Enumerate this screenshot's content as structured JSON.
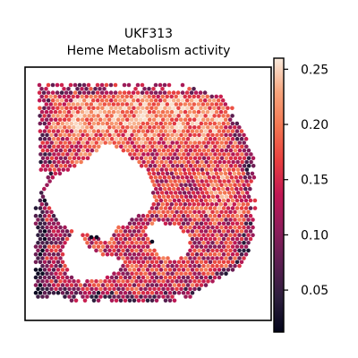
{
  "chart_data": {
    "type": "heatmap",
    "title": "UKF313",
    "subtitle": "Heme Metabolism activity",
    "xlabel": "",
    "ylabel": "",
    "grid": false,
    "colorbar": {
      "colormap": "rocket",
      "vmin": 0.012,
      "vmax": 0.26,
      "ticks": [
        0.05,
        0.1,
        0.15,
        0.2,
        0.25
      ],
      "tick_labels": [
        "0.05",
        "0.10",
        "0.15",
        "0.20",
        "0.25"
      ],
      "placement": "right"
    },
    "regions": [
      {
        "name": "high-activity band (upper right)",
        "approx_value": 0.2
      },
      {
        "name": "tissue body",
        "approx_value": 0.13
      },
      {
        "name": "tissue edges",
        "approx_value": 0.08
      }
    ]
  },
  "colors": {
    "axes": "#000000",
    "background": "#ffffff",
    "colormap_stops": [
      "#03051a",
      "#2c1e3d",
      "#5b1e51",
      "#8e1d5b",
      "#c11754",
      "#e83f3f",
      "#f37651",
      "#f6a47c",
      "#faebdd"
    ]
  }
}
